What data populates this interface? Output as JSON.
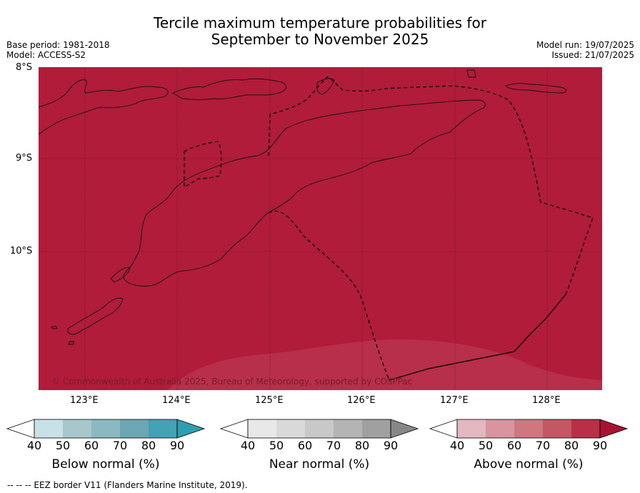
{
  "title_line1": "Tercile maximum temperature probabilities for",
  "title_line2": "September to November 2025",
  "base_period": "Base period: 1981-2018",
  "model": "Model: ACCESS-S2",
  "model_run": "Model run: 19/07/2025",
  "issued": "Issued: 21/07/2025",
  "copyright": "© Commonwealth of Australia 2025, Bureau of Meteorology, supported by COSPPac",
  "lat_labels": [
    "8°S",
    "9°S",
    "10°S"
  ],
  "lon_labels": [
    "123°E",
    "124°E",
    "125°E",
    "126°E",
    "127°E",
    "128°E"
  ],
  "colorbars": [
    {
      "label": "Below normal (%)",
      "ticks": [
        "40",
        "50",
        "60",
        "70",
        "80",
        "90"
      ],
      "colors": [
        "#ffffff",
        "#c8e1e7",
        "#a7c7cc",
        "#8bb9c2",
        "#6ba6b2",
        "#45a1b4",
        "#2e9fb2"
      ]
    },
    {
      "label": "Near normal (%)",
      "ticks": [
        "40",
        "50",
        "60",
        "70",
        "80",
        "90"
      ],
      "colors": [
        "#ffffff",
        "#e8e8e8",
        "#d9d9d9",
        "#c8c8c8",
        "#b4b4b4",
        "#a0a0a0",
        "#878787"
      ]
    },
    {
      "label": "Above normal (%)",
      "ticks": [
        "40",
        "50",
        "60",
        "70",
        "80",
        "90"
      ],
      "colors": [
        "#ffffff",
        "#e3b8c0",
        "#d9949f",
        "#cd7780",
        "#c35764",
        "#b92f47",
        "#a81333"
      ]
    }
  ],
  "footnote": "--  --  -- EEZ border V11 (Flanders Marine Institute, 2019).",
  "colors": {
    "map_fill": "#b01c3a",
    "map_fill_light": "#b52d48",
    "grid": "#6a1020"
  }
}
